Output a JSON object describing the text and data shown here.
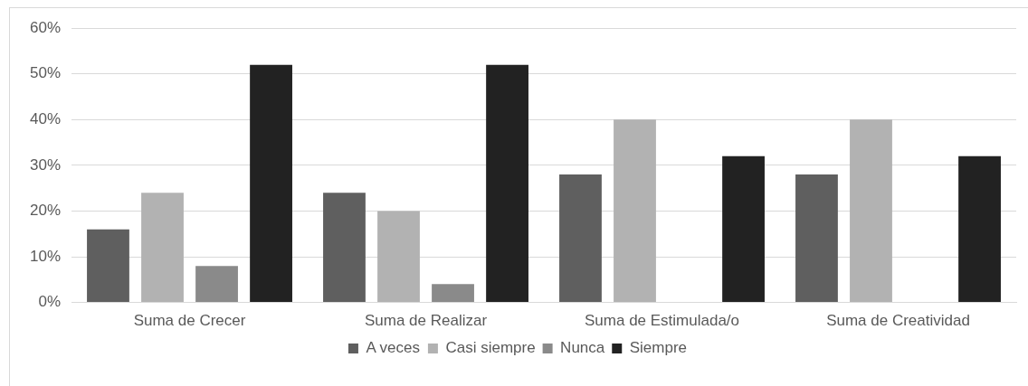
{
  "chart_data": {
    "type": "bar",
    "categories": [
      "Suma de Crecer",
      "Suma de Realizar",
      "Suma de Estimulada/o",
      "Suma de Creatividad"
    ],
    "series": [
      {
        "name": "A veces",
        "color": "#5f5f5f",
        "values": [
          16,
          24,
          28,
          28
        ]
      },
      {
        "name": "Casi siempre",
        "color": "#b2b2b2",
        "values": [
          24,
          20,
          40,
          40
        ]
      },
      {
        "name": "Nunca",
        "color": "#8a8a8a",
        "values": [
          8,
          4,
          0,
          0
        ]
      },
      {
        "name": "Siempre",
        "color": "#222222",
        "values": [
          52,
          52,
          32,
          32
        ]
      }
    ],
    "ylim": [
      0,
      60
    ],
    "yticks": [
      {
        "value": 0,
        "label": "0%"
      },
      {
        "value": 10,
        "label": "10%"
      },
      {
        "value": 20,
        "label": "20%"
      },
      {
        "value": 30,
        "label": "30%"
      },
      {
        "value": 40,
        "label": "40%"
      },
      {
        "value": 50,
        "label": "50%"
      },
      {
        "value": 60,
        "label": "60%"
      }
    ],
    "grid": "y",
    "legend": "bottom"
  }
}
